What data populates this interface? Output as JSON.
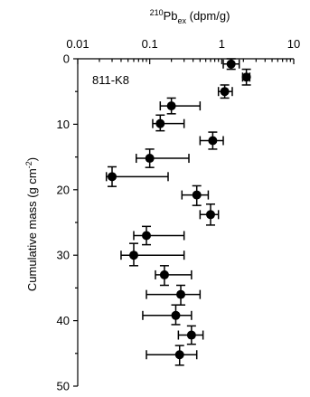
{
  "chart_data": {
    "type": "scatter",
    "title": "",
    "xlabel": {
      "iso": "210",
      "base": "Pb",
      "sub": "ex",
      "unit": " (dpm/g)"
    },
    "ylabel": {
      "main": "Cumulative mass (g cm",
      "sup": "-2",
      "end": ")"
    },
    "annotation": "811-K8",
    "x_axis": {
      "scale": "log",
      "position": "top",
      "range": [
        0.01,
        10
      ],
      "ticks": [
        0.01,
        0.1,
        1,
        10
      ],
      "tick_labels": [
        "0.01",
        "0.1",
        "1",
        "10"
      ]
    },
    "y_axis": {
      "inverted": true,
      "range": [
        0,
        50
      ],
      "ticks": [
        0,
        10,
        20,
        30,
        40,
        50
      ],
      "tick_labels": [
        "0",
        "10",
        "20",
        "30",
        "40",
        "50"
      ]
    },
    "grid": false,
    "points": [
      {
        "y": 0.8,
        "x": 1.35,
        "xmin": 1.05,
        "xmax": 1.75,
        "ymin": 0.0,
        "ymax": 1.6,
        "boxed": true
      },
      {
        "y": 2.8,
        "x": 2.2,
        "xmin": 1.95,
        "xmax": 2.45,
        "ymin": 1.6,
        "ymax": 4.0,
        "boxed": true
      },
      {
        "y": 5.0,
        "x": 1.1,
        "xmin": 0.9,
        "xmax": 1.4,
        "ymin": 4.0,
        "ymax": 6.0,
        "boxed": true
      },
      {
        "y": 7.2,
        "x": 0.2,
        "xmin": 0.14,
        "xmax": 0.5,
        "ymin": 6.0,
        "ymax": 8.4
      },
      {
        "y": 9.9,
        "x": 0.14,
        "xmin": 0.11,
        "xmax": 0.3,
        "ymin": 8.6,
        "ymax": 11.0
      },
      {
        "y": 12.5,
        "x": 0.75,
        "xmin": 0.5,
        "xmax": 1.05,
        "ymin": 11.2,
        "ymax": 13.8
      },
      {
        "y": 15.2,
        "x": 0.1,
        "xmin": 0.065,
        "xmax": 0.35,
        "ymin": 13.8,
        "ymax": 16.6
      },
      {
        "y": 18.0,
        "x": 0.03,
        "xmin": 0.025,
        "xmax": 0.18,
        "ymin": 16.5,
        "ymax": 19.5
      },
      {
        "y": 20.8,
        "x": 0.45,
        "xmin": 0.28,
        "xmax": 0.65,
        "ymin": 19.4,
        "ymax": 22.4
      },
      {
        "y": 23.8,
        "x": 0.7,
        "xmin": 0.5,
        "xmax": 0.9,
        "ymin": 22.2,
        "ymax": 25.4
      },
      {
        "y": 27.0,
        "x": 0.09,
        "xmin": 0.06,
        "xmax": 0.3,
        "ymin": 25.6,
        "ymax": 28.4
      },
      {
        "y": 30.0,
        "x": 0.06,
        "xmin": 0.04,
        "xmax": 0.3,
        "ymin": 28.2,
        "ymax": 31.6
      },
      {
        "y": 33.0,
        "x": 0.16,
        "xmin": 0.12,
        "xmax": 0.38,
        "ymin": 31.6,
        "ymax": 34.6
      },
      {
        "y": 36.0,
        "x": 0.27,
        "xmin": 0.09,
        "xmax": 0.5,
        "ymin": 34.6,
        "ymax": 37.6
      },
      {
        "y": 39.2,
        "x": 0.23,
        "xmin": 0.08,
        "xmax": 0.38,
        "ymin": 37.6,
        "ymax": 40.6
      },
      {
        "y": 42.2,
        "x": 0.38,
        "xmin": 0.25,
        "xmax": 0.55,
        "ymin": 40.8,
        "ymax": 43.6
      },
      {
        "y": 45.2,
        "x": 0.26,
        "xmin": 0.09,
        "xmax": 0.45,
        "ymin": 43.8,
        "ymax": 46.8
      }
    ]
  }
}
